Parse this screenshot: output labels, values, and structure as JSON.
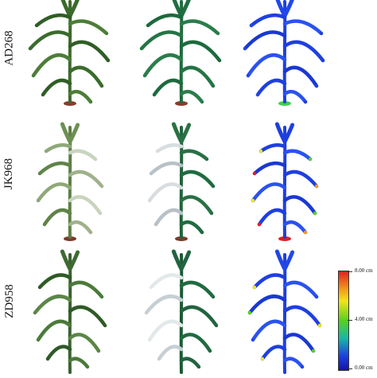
{
  "rows": [
    {
      "label": "AD268"
    },
    {
      "label": "JK968"
    },
    {
      "label": "ZD958"
    }
  ],
  "columns": [
    "photo",
    "colored-point-cloud",
    "error-heatmap"
  ],
  "colorbar": {
    "max_label": "8.00 cm",
    "mid_label": "4.00 cm",
    "min_label": "0.00 cm",
    "stops": [
      "#e02020",
      "#f29a1a",
      "#f2e41a",
      "#55d11e",
      "#18b7a8",
      "#1e3fe0",
      "#1515a8"
    ]
  }
}
